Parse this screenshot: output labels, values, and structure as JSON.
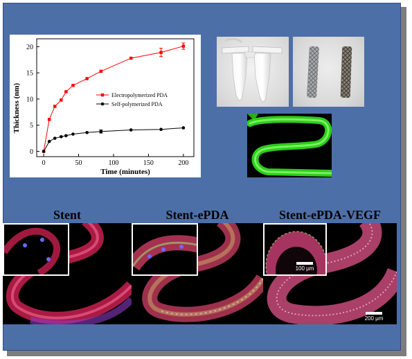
{
  "chart_data": {
    "type": "line",
    "xlabel": "Time (minutes)",
    "ylabel": "Thickness (nm)",
    "xlim": [
      -10,
      215
    ],
    "ylim": [
      -1,
      21.5
    ],
    "xticks": [
      0,
      50,
      100,
      150,
      200
    ],
    "yticks": [
      0,
      5,
      10,
      15,
      20
    ],
    "grid": false,
    "legend_position": "center",
    "series": [
      {
        "name": "Electropolymerized PDA",
        "color": "#ff0000",
        "marker": "square",
        "x": [
          0,
          8,
          16,
          25,
          32,
          42,
          62,
          82,
          125,
          168,
          200
        ],
        "y": [
          0,
          6.1,
          8.6,
          9.8,
          11.4,
          12.6,
          13.9,
          15.3,
          17.8,
          18.9,
          20.1
        ],
        "error": [
          0,
          0,
          0,
          0,
          0,
          0,
          0,
          0,
          0,
          0.8,
          0.6
        ]
      },
      {
        "name": "Self-polymerized PDA",
        "color": "#000000",
        "marker": "circle",
        "x": [
          0,
          8,
          16,
          25,
          32,
          42,
          62,
          82,
          125,
          168,
          200
        ],
        "y": [
          0,
          1.9,
          2.5,
          2.8,
          3.0,
          3.3,
          3.6,
          3.8,
          4.1,
          4.2,
          4.5
        ],
        "error": [
          0,
          0,
          0,
          0,
          0,
          0,
          0,
          0.3,
          0,
          0,
          0
        ]
      }
    ]
  },
  "labels": {
    "stent": "Stent",
    "stent_epda": "Stent-ePDA",
    "stent_epda_vegf": "Stent-ePDA-VEGF"
  },
  "scalebars": {
    "inset": "100 μm",
    "main": "200 μm"
  },
  "colors": {
    "background_frame": "#4d6fa8",
    "fluorescence_green": "#3cff2a",
    "cell_red": "#d8205a",
    "nucleus_blue": "#5a5aff"
  }
}
